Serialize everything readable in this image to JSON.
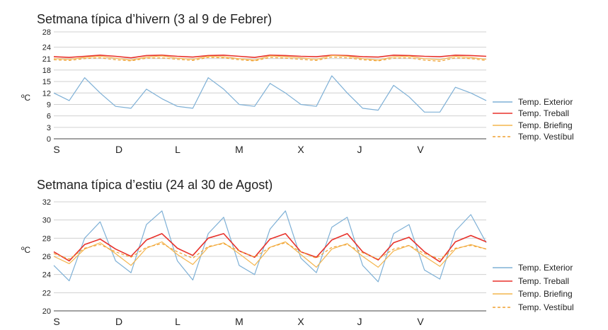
{
  "chart_data": [
    {
      "type": "line",
      "title": "Setmana típica d’hivern (3 al 9 de Febrer)",
      "ylabel": "ºC",
      "ylim": [
        0,
        28
      ],
      "yticks": [
        "0",
        "3",
        "6",
        "9",
        "12",
        "15",
        "18",
        "21",
        "24",
        "28"
      ],
      "ytick_values": [
        0,
        3,
        6,
        9,
        12,
        15,
        18,
        21,
        24,
        28
      ],
      "categories": [
        "S",
        "D",
        "L",
        "M",
        "X",
        "J",
        "V"
      ],
      "grid": true,
      "legend_position": "right",
      "x": [
        0,
        6,
        12,
        18,
        24,
        30,
        36,
        42,
        48,
        54,
        60,
        66,
        72,
        78,
        84,
        90,
        96,
        102,
        108,
        114,
        120,
        126,
        132,
        138,
        144,
        150,
        156,
        162,
        168
      ],
      "series": [
        {
          "name": "Temp. Exterior",
          "color": "#7eb0d6",
          "dash": "",
          "values": [
            12,
            10,
            16,
            12,
            8.5,
            8,
            13,
            10.5,
            8.5,
            8,
            16,
            13,
            9,
            8.5,
            14.5,
            12,
            9,
            8.5,
            16.5,
            12,
            8,
            7.5,
            14,
            11,
            7,
            7,
            13.5,
            12,
            10
          ]
        },
        {
          "name": "Temp. Treball",
          "color": "#e8322b",
          "dash": "",
          "values": [
            21.5,
            21.3,
            21.6,
            21.9,
            21.6,
            21.2,
            21.8,
            21.9,
            21.6,
            21.4,
            21.8,
            21.9,
            21.6,
            21.3,
            21.9,
            21.8,
            21.6,
            21.5,
            21.9,
            21.8,
            21.5,
            21.4,
            21.9,
            21.8,
            21.6,
            21.5,
            21.9,
            21.8,
            21.6
          ]
        },
        {
          "name": "Temp. Briefing",
          "color": "#f4b54d",
          "dash": "",
          "values": [
            21,
            20.8,
            21.3,
            21.6,
            21.1,
            20.6,
            21.4,
            21.7,
            21.1,
            20.8,
            21.6,
            21.5,
            21.0,
            20.6,
            21.7,
            21.5,
            21.2,
            20.8,
            21.8,
            21.6,
            21.0,
            20.6,
            21.5,
            21.6,
            21.0,
            20.7,
            21.6,
            21.3,
            20.8
          ]
        },
        {
          "name": "Temp. Vestíbul",
          "color": "#f0a030",
          "dash": "4,3",
          "values": [
            20.7,
            20.5,
            21.0,
            21.2,
            20.7,
            20.4,
            21.1,
            21.2,
            20.8,
            20.5,
            21.3,
            21.2,
            20.7,
            20.4,
            21.3,
            21.1,
            20.8,
            20.5,
            21.4,
            21.2,
            20.7,
            20.4,
            21.1,
            21.2,
            20.6,
            20.3,
            21.2,
            21.0,
            20.5
          ]
        }
      ]
    },
    {
      "type": "line",
      "title": "Setmana típica d’estiu (24 al 30 de Agost)",
      "ylabel": "ºC",
      "ylim": [
        20,
        32
      ],
      "yticks": [
        "20",
        "22",
        "24",
        "26",
        "28",
        "30",
        "32"
      ],
      "ytick_values": [
        20,
        22,
        24,
        26,
        28,
        30,
        32
      ],
      "categories": [
        "S",
        "D",
        "L",
        "M",
        "X",
        "J",
        "V"
      ],
      "grid": true,
      "legend_position": "right",
      "x": [
        0,
        6,
        12,
        18,
        24,
        30,
        36,
        42,
        48,
        54,
        60,
        66,
        72,
        78,
        84,
        90,
        96,
        102,
        108,
        114,
        120,
        126,
        132,
        138,
        144,
        150,
        156,
        162,
        168
      ],
      "series": [
        {
          "name": "Temp. Exterior",
          "color": "#7eb0d6",
          "dash": "",
          "values": [
            25,
            23.3,
            28,
            29.8,
            25.5,
            24.2,
            29.5,
            31,
            25.5,
            23.4,
            28.5,
            30.3,
            25,
            24,
            29,
            31,
            25.8,
            24.2,
            29.2,
            30.3,
            25,
            23.2,
            28.5,
            29.5,
            24.5,
            23.5,
            28.8,
            30.6,
            27.5
          ]
        },
        {
          "name": "Temp. Treball",
          "color": "#e8322b",
          "dash": "",
          "values": [
            26.5,
            25.5,
            27.3,
            27.9,
            26.8,
            26.0,
            27.8,
            28.5,
            26.9,
            26.1,
            28.0,
            28.5,
            26.6,
            25.9,
            27.9,
            28.5,
            26.5,
            25.9,
            27.8,
            28.5,
            26.5,
            25.6,
            27.5,
            28.1,
            26.5,
            25.4,
            27.6,
            28.3,
            27.6
          ]
        },
        {
          "name": "Temp. Briefing",
          "color": "#f4b54d",
          "dash": "",
          "values": [
            26,
            25.2,
            26.8,
            27.5,
            26.3,
            25.0,
            26.9,
            27.6,
            26.2,
            25.1,
            27.0,
            27.5,
            26.3,
            25.0,
            27.0,
            27.6,
            26.2,
            24.8,
            26.8,
            27.4,
            26.0,
            24.8,
            26.6,
            27.2,
            26.0,
            24.9,
            26.8,
            27.3,
            26.8
          ]
        },
        {
          "name": "Temp. Vestíbul",
          "color": "#f0a030",
          "dash": "4,3",
          "values": [
            26.3,
            25.7,
            26.9,
            27.3,
            26.5,
            25.9,
            27.0,
            27.4,
            26.5,
            25.8,
            27.1,
            27.4,
            26.6,
            25.9,
            27.0,
            27.5,
            26.5,
            25.8,
            27.0,
            27.3,
            26.4,
            25.7,
            26.8,
            27.2,
            26.3,
            25.7,
            26.9,
            27.2,
            26.8
          ]
        }
      ]
    }
  ]
}
